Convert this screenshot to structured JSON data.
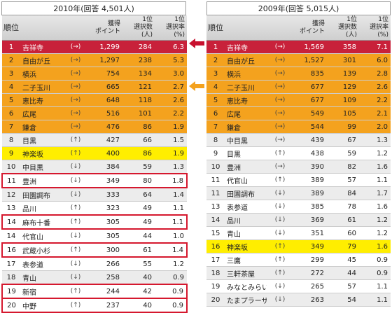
{
  "left": {
    "year_title": "2010年(回答 4,501人)",
    "headers": {
      "rank": "順位",
      "name": "",
      "points": "獲得\nポイント",
      "votes": "1位\n選択数(人)",
      "rate": "1位\n選択率(%)"
    },
    "rows": [
      {
        "rank": "1",
        "name": "吉祥寺",
        "trend": "(→)",
        "points": "1,299",
        "votes": "284",
        "rate": "6.3",
        "style": "red"
      },
      {
        "rank": "2",
        "name": "自由が丘",
        "trend": "(→)",
        "points": "1,297",
        "votes": "238",
        "rate": "5.3",
        "style": "orange"
      },
      {
        "rank": "3",
        "name": "横浜",
        "trend": "(→)",
        "points": "754",
        "votes": "134",
        "rate": "3.0",
        "style": "orange"
      },
      {
        "rank": "4",
        "name": "二子玉川",
        "trend": "(→)",
        "points": "665",
        "votes": "121",
        "rate": "2.7",
        "style": "orange"
      },
      {
        "rank": "5",
        "name": "恵比寿",
        "trend": "(→)",
        "points": "648",
        "votes": "118",
        "rate": "2.6",
        "style": "orange"
      },
      {
        "rank": "6",
        "name": "広尾",
        "trend": "(→)",
        "points": "516",
        "votes": "101",
        "rate": "2.2",
        "style": "orange"
      },
      {
        "rank": "7",
        "name": "鎌倉",
        "trend": "(→)",
        "points": "476",
        "votes": "86",
        "rate": "1.9",
        "style": "orange"
      },
      {
        "rank": "8",
        "name": "目黒",
        "trend": "(↑)",
        "points": "427",
        "votes": "66",
        "rate": "1.5",
        "style": "grey"
      },
      {
        "rank": "9",
        "name": "神楽坂",
        "trend": "(↑)",
        "points": "400",
        "votes": "86",
        "rate": "1.9",
        "style": "yellow"
      },
      {
        "rank": "10",
        "name": "中目黒",
        "trend": "(↓)",
        "points": "384",
        "votes": "59",
        "rate": "1.3",
        "style": "grey"
      },
      {
        "rank": "11",
        "name": "豊洲",
        "trend": "(↓)",
        "points": "349",
        "votes": "80",
        "rate": "1.8",
        "style": "box"
      },
      {
        "rank": "12",
        "name": "田園調布",
        "trend": "(↓)",
        "points": "333",
        "votes": "64",
        "rate": "1.4",
        "style": "grey"
      },
      {
        "rank": "13",
        "name": "品川",
        "trend": "(↑)",
        "points": "323",
        "votes": "49",
        "rate": "1.1",
        "style": "white"
      },
      {
        "rank": "14",
        "name": "麻布十番",
        "trend": "(↑)",
        "points": "305",
        "votes": "49",
        "rate": "1.1",
        "style": "box"
      },
      {
        "rank": "14",
        "name": "代官山",
        "trend": "(↓)",
        "points": "305",
        "votes": "44",
        "rate": "1.0",
        "style": "white"
      },
      {
        "rank": "16",
        "name": "武蔵小杉",
        "trend": "(↑)",
        "points": "300",
        "votes": "61",
        "rate": "1.4",
        "style": "box"
      },
      {
        "rank": "17",
        "name": "表参道",
        "trend": "(↓)",
        "points": "266",
        "votes": "55",
        "rate": "1.2",
        "style": "white"
      },
      {
        "rank": "18",
        "name": "青山",
        "trend": "(↓)",
        "points": "258",
        "votes": "40",
        "rate": "0.9",
        "style": "grey"
      },
      {
        "rank": "19",
        "name": "新宿",
        "trend": "(↑)",
        "points": "244",
        "votes": "42",
        "rate": "0.9",
        "style": "box"
      },
      {
        "rank": "20",
        "name": "中野",
        "trend": "(↑)",
        "points": "237",
        "votes": "40",
        "rate": "0.9",
        "style": "box"
      }
    ]
  },
  "right": {
    "year_title": "2009年(回答 5,015人)",
    "headers": {
      "rank": "順位",
      "name": "",
      "points": "獲得\nポイント",
      "votes": "1位\n選択数(人)",
      "rate": "1位\n選択率(%)"
    },
    "rows": [
      {
        "rank": "1",
        "name": "吉祥寺",
        "trend": "(→)",
        "points": "1,569",
        "votes": "358",
        "rate": "7.1",
        "style": "red"
      },
      {
        "rank": "2",
        "name": "自由が丘",
        "trend": "(→)",
        "points": "1,527",
        "votes": "301",
        "rate": "6.0",
        "style": "orange"
      },
      {
        "rank": "3",
        "name": "横浜",
        "trend": "(→)",
        "points": "835",
        "votes": "139",
        "rate": "2.8",
        "style": "orange"
      },
      {
        "rank": "4",
        "name": "二子玉川",
        "trend": "(→)",
        "points": "677",
        "votes": "129",
        "rate": "2.6",
        "style": "orange"
      },
      {
        "rank": "5",
        "name": "恵比寿",
        "trend": "(→)",
        "points": "677",
        "votes": "109",
        "rate": "2.2",
        "style": "orange"
      },
      {
        "rank": "6",
        "name": "広尾",
        "trend": "(→)",
        "points": "549",
        "votes": "105",
        "rate": "2.1",
        "style": "orange"
      },
      {
        "rank": "7",
        "name": "鎌倉",
        "trend": "(→)",
        "points": "544",
        "votes": "99",
        "rate": "2.0",
        "style": "orange"
      },
      {
        "rank": "8",
        "name": "中目黒",
        "trend": "(→)",
        "points": "439",
        "votes": "67",
        "rate": "1.3",
        "style": "grey"
      },
      {
        "rank": "9",
        "name": "目黒",
        "trend": "(↑)",
        "points": "438",
        "votes": "59",
        "rate": "1.2",
        "style": "white"
      },
      {
        "rank": "10",
        "name": "豊洲",
        "trend": "(→)",
        "points": "390",
        "votes": "82",
        "rate": "1.6",
        "style": "grey"
      },
      {
        "rank": "11",
        "name": "代官山",
        "trend": "(↑)",
        "points": "389",
        "votes": "57",
        "rate": "1.1",
        "style": "white"
      },
      {
        "rank": "11",
        "name": "田園調布",
        "trend": "(↓)",
        "points": "389",
        "votes": "84",
        "rate": "1.7",
        "style": "grey"
      },
      {
        "rank": "13",
        "name": "表参道",
        "trend": "(↓)",
        "points": "385",
        "votes": "78",
        "rate": "1.6",
        "style": "white"
      },
      {
        "rank": "14",
        "name": "品川",
        "trend": "(↓)",
        "points": "369",
        "votes": "61",
        "rate": "1.2",
        "style": "grey"
      },
      {
        "rank": "15",
        "name": "青山",
        "trend": "(↓)",
        "points": "351",
        "votes": "60",
        "rate": "1.2",
        "style": "white"
      },
      {
        "rank": "16",
        "name": "神楽坂",
        "trend": "(↑)",
        "points": "349",
        "votes": "79",
        "rate": "1.6",
        "style": "yellow"
      },
      {
        "rank": "17",
        "name": "三鷹",
        "trend": "(↑)",
        "points": "299",
        "votes": "45",
        "rate": "0.9",
        "style": "white"
      },
      {
        "rank": "18",
        "name": "三軒茶屋",
        "trend": "(↑)",
        "points": "272",
        "votes": "44",
        "rate": "0.9",
        "style": "grey"
      },
      {
        "rank": "19",
        "name": "みなとみらい",
        "trend": "(↓)",
        "points": "265",
        "votes": "57",
        "rate": "1.1",
        "style": "white"
      },
      {
        "rank": "20",
        "name": "たまプラーザ",
        "trend": "(↓)",
        "points": "263",
        "votes": "54",
        "rate": "1.1",
        "style": "grey"
      }
    ]
  },
  "colors": {
    "red": "#c8213a",
    "orange": "#f4a21e",
    "yellow": "#ffee00",
    "grey": "#ececec",
    "box_outline": "#d5182e",
    "arrow_red": "#c8102e",
    "arrow_orange": "#f4a21e"
  },
  "icons": {
    "arrow_first": "left-arrow-icon",
    "arrow_top_group": "left-arrow-icon"
  }
}
